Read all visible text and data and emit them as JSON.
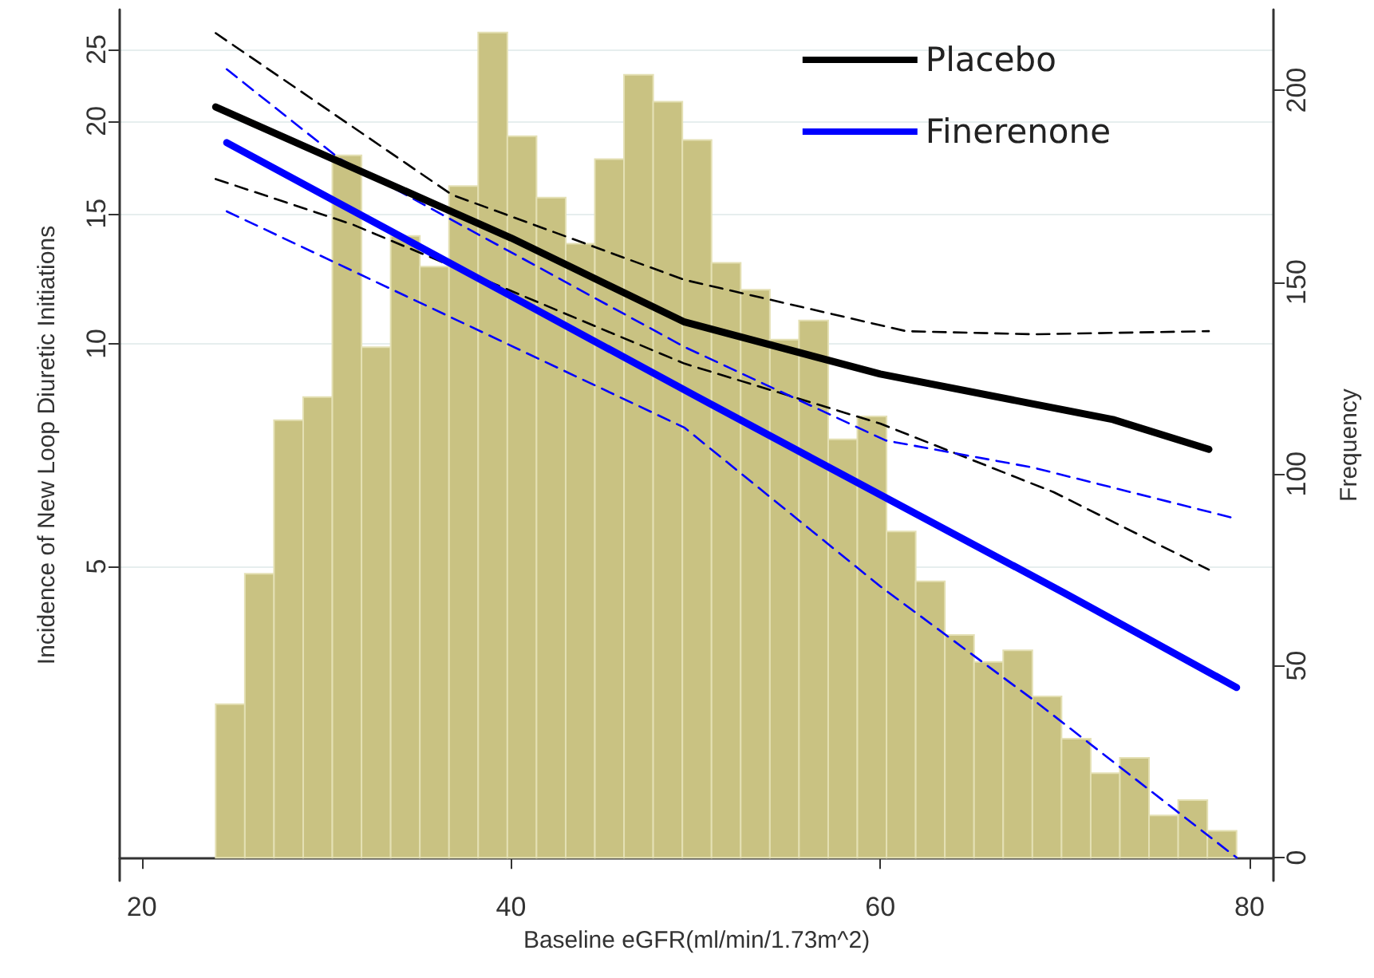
{
  "chart_data": {
    "type": "line",
    "xlabel": "Baseline eGFR(ml/min/1.73m^2)",
    "ylabel": "Incidence of New Loop Diuretic Initiations",
    "y2label": "Frequency",
    "xlim": [
      18.8,
      81.3
    ],
    "xticks": [
      20,
      40,
      60,
      80
    ],
    "ylim": [
      1.88,
      28.3
    ],
    "yticks": [
      5,
      10,
      15,
      20,
      25
    ],
    "log": "y",
    "y2lim": [
      -6,
      221
    ],
    "y2ticks": [
      0,
      50,
      100,
      150,
      200
    ],
    "grid": "y",
    "legend": "top right",
    "marker": "none",
    "series": [
      {
        "type": "histogram",
        "axis": "y2",
        "color": "#c9c282",
        "bins": [
          24,
          25.58,
          27.16,
          28.74,
          30.32,
          31.9,
          33.48,
          35.06,
          36.64,
          38.22,
          39.8,
          41.38,
          42.96,
          44.54,
          46.12,
          47.7,
          49.28,
          50.86,
          52.44,
          54.02,
          55.6,
          57.18,
          58.76,
          60.34,
          61.92,
          63.5,
          65.08,
          66.66,
          68.24,
          69.82,
          71.4,
          72.98,
          74.56,
          76.14,
          77.72,
          79.3
        ],
        "values": [
          40,
          74,
          114,
          120,
          183,
          133,
          162,
          154,
          175,
          215,
          188,
          172,
          160,
          182,
          204,
          197,
          187,
          155,
          148,
          135,
          140,
          109,
          115,
          85,
          72,
          58,
          51,
          54,
          42,
          31,
          22,
          26,
          11,
          15,
          7
        ]
      },
      {
        "color": "#000000",
        "line_style": "dashed",
        "x": [
          24.0,
          36.8,
          49.4,
          61.4,
          68.3,
          77.8
        ],
        "values": [
          26.3,
          15.9,
          12.2,
          10.4,
          10.3,
          10.4
        ]
      },
      {
        "color": "#000000",
        "line_style": "dashed",
        "x": [
          24.0,
          31.4,
          49.4,
          60,
          69.4,
          77.8
        ],
        "values": [
          16.7,
          14.5,
          9.4,
          7.8,
          6.3,
          4.95
        ]
      },
      {
        "color": "#0000ff",
        "line_style": "dashed",
        "x": [
          24.6,
          30.7,
          49.4,
          60.3,
          68.3,
          79.3
        ],
        "values": [
          23.5,
          17.8,
          9.9,
          7.4,
          6.8,
          5.8
        ]
      },
      {
        "color": "#0000ff",
        "line_style": "dashed",
        "x": [
          24.6,
          49.4,
          60,
          68.3,
          79.3
        ],
        "values": [
          15.1,
          7.7,
          4.7,
          3.3,
          2.02
        ]
      },
      {
        "name": "Placebo",
        "color": "#000000",
        "line_style": "solid",
        "x": [
          24.0,
          40,
          49.4,
          60,
          72.6,
          77.8
        ],
        "values": [
          20.9,
          13.9,
          10.7,
          9.1,
          7.9,
          7.2
        ]
      },
      {
        "name": "Finerenone",
        "color": "#0000ff",
        "line_style": "solid",
        "x": [
          24.6,
          40,
          50,
          60,
          70,
          79.3
        ],
        "values": [
          18.7,
          11.6,
          8.5,
          6.25,
          4.6,
          3.43
        ]
      }
    ]
  }
}
